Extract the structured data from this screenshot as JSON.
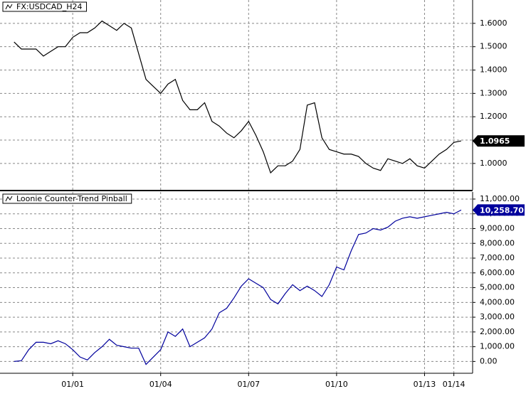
{
  "chart_data": [
    {
      "type": "line",
      "title": "FX:USDCAD_H24",
      "x": [
        1999.0,
        1999.25,
        1999.5,
        1999.75,
        2000.0,
        2000.25,
        2000.5,
        2000.75,
        2001.0,
        2001.25,
        2001.5,
        2001.75,
        2002.0,
        2002.25,
        2002.5,
        2002.75,
        2003.0,
        2003.25,
        2003.5,
        2003.75,
        2004.0,
        2004.25,
        2004.5,
        2004.75,
        2005.0,
        2005.25,
        2005.5,
        2005.75,
        2006.0,
        2006.25,
        2006.5,
        2006.75,
        2007.0,
        2007.25,
        2007.5,
        2007.75,
        2008.0,
        2008.25,
        2008.5,
        2008.75,
        2009.0,
        2009.25,
        2009.5,
        2009.75,
        2010.0,
        2010.25,
        2010.5,
        2010.75,
        2011.0,
        2011.25,
        2011.5,
        2011.75,
        2012.0,
        2012.25,
        2012.5,
        2012.75,
        2013.0,
        2013.25,
        2013.5,
        2013.75,
        2014.0,
        2014.25
      ],
      "series": [
        {
          "name": "FX:USDCAD_H24",
          "color": "#000000",
          "values": [
            1.52,
            1.49,
            1.49,
            1.49,
            1.46,
            1.48,
            1.5,
            1.5,
            1.54,
            1.56,
            1.56,
            1.58,
            1.61,
            1.59,
            1.57,
            1.6,
            1.58,
            1.47,
            1.36,
            1.33,
            1.3,
            1.34,
            1.36,
            1.27,
            1.23,
            1.23,
            1.26,
            1.18,
            1.16,
            1.13,
            1.11,
            1.14,
            1.18,
            1.12,
            1.05,
            0.96,
            0.99,
            0.99,
            1.01,
            1.06,
            1.25,
            1.26,
            1.11,
            1.06,
            1.05,
            1.04,
            1.04,
            1.03,
            1.0,
            0.98,
            0.97,
            1.02,
            1.01,
            1.0,
            1.02,
            0.99,
            0.98,
            1.01,
            1.04,
            1.06,
            1.09,
            1.0965
          ]
        }
      ],
      "xlim": [
        1998.52,
        2014.64
      ],
      "ylim": [
        0.887,
        1.7
      ],
      "yticks": [
        {
          "value": 1.0,
          "label": "1.0000"
        },
        {
          "value": 1.1,
          "label": "1.1000"
        },
        {
          "value": 1.2,
          "label": "1.2000"
        },
        {
          "value": 1.3,
          "label": "1.3000"
        },
        {
          "value": 1.4,
          "label": "1.4000"
        },
        {
          "value": 1.5,
          "label": "1.5000"
        },
        {
          "value": 1.6,
          "label": "1.6000"
        }
      ],
      "grid": true
    },
    {
      "type": "line",
      "title": "Loonie Counter-Trend Pinball",
      "x": [
        1999.0,
        1999.25,
        1999.5,
        1999.75,
        2000.0,
        2000.25,
        2000.5,
        2000.75,
        2001.0,
        2001.25,
        2001.5,
        2001.75,
        2002.0,
        2002.25,
        2002.5,
        2002.75,
        2003.0,
        2003.25,
        2003.5,
        2003.75,
        2004.0,
        2004.25,
        2004.5,
        2004.75,
        2005.0,
        2005.25,
        2005.5,
        2005.75,
        2006.0,
        2006.25,
        2006.5,
        2006.75,
        2007.0,
        2007.25,
        2007.5,
        2007.75,
        2008.0,
        2008.25,
        2008.5,
        2008.75,
        2009.0,
        2009.25,
        2009.5,
        2009.75,
        2010.0,
        2010.25,
        2010.5,
        2010.75,
        2011.0,
        2011.25,
        2011.5,
        2011.75,
        2012.0,
        2012.25,
        2012.5,
        2012.75,
        2013.0,
        2013.25,
        2013.5,
        2013.75,
        2014.0,
        2014.25
      ],
      "series": [
        {
          "name": "Loonie Counter-Trend Pinball",
          "color": "#00009c",
          "values": [
            0,
            50,
            800,
            1300,
            1300,
            1200,
            1400,
            1200,
            800,
            300,
            100,
            600,
            1000,
            1500,
            1100,
            1000,
            900,
            900,
            -200,
            300,
            800,
            2000,
            1700,
            2200,
            1000,
            1300,
            1600,
            2200,
            3300,
            3600,
            4300,
            5100,
            5600,
            5300,
            5000,
            4200,
            3900,
            4600,
            5200,
            4800,
            5100,
            4800,
            4400,
            5200,
            6400,
            6200,
            7500,
            8600,
            8700,
            9000,
            8900,
            9100,
            9500,
            9700,
            9800,
            9700,
            9800,
            9900,
            10000,
            10100,
            10000,
            10258.7
          ],
          "value_labels": [
            null,
            null,
            null,
            null,
            null,
            null,
            null,
            null,
            null,
            null,
            null,
            null,
            null,
            null,
            null,
            null,
            null,
            null,
            null,
            null,
            null,
            null,
            null,
            null,
            null,
            null,
            null,
            null,
            null,
            null,
            null,
            null,
            null,
            null,
            null,
            null,
            null,
            null,
            null,
            null,
            null,
            null,
            null,
            null,
            null,
            null,
            null,
            null,
            null,
            null,
            null,
            null,
            null,
            null,
            null,
            null,
            null,
            null,
            null,
            null,
            null,
            "10,258.70"
          ]
        }
      ],
      "xlim": [
        1998.52,
        2014.64
      ],
      "ylim": [
        -800,
        11480
      ],
      "xticks": [
        {
          "value": 2001,
          "label": "01/01"
        },
        {
          "value": 2004,
          "label": "01/04"
        },
        {
          "value": 2007,
          "label": "01/07"
        },
        {
          "value": 2010,
          "label": "01/10"
        },
        {
          "value": 2013,
          "label": "01/13"
        },
        {
          "value": 2014,
          "label": "01/14"
        }
      ],
      "yticks": [
        {
          "value": 0,
          "label": "0.00"
        },
        {
          "value": 1000,
          "label": "1,000.00"
        },
        {
          "value": 2000,
          "label": "2,000.00"
        },
        {
          "value": 3000,
          "label": "3,000.00"
        },
        {
          "value": 4000,
          "label": "4,000.00"
        },
        {
          "value": 5000,
          "label": "5,000.00"
        },
        {
          "value": 6000,
          "label": "6,000.00"
        },
        {
          "value": 7000,
          "label": "7,000.00"
        },
        {
          "value": 8000,
          "label": "8,000.00"
        },
        {
          "value": 9000,
          "label": "9,000.00"
        },
        {
          "value": 10000,
          "label": "10,000.00"
        },
        {
          "value": 11000,
          "label": "11,000.00"
        }
      ],
      "grid": true
    }
  ]
}
